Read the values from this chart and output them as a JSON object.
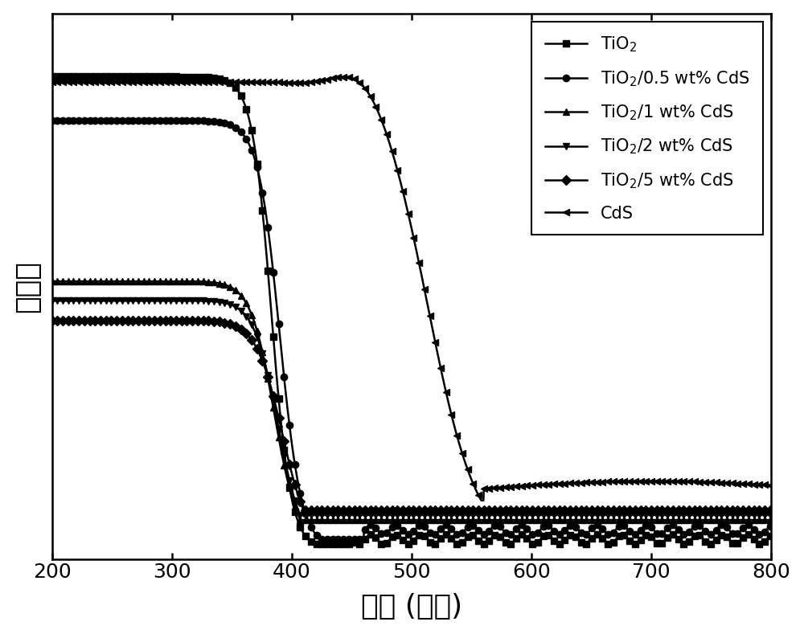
{
  "xlabel": "波长 (纳米)",
  "ylabel": "光吸收",
  "xmin": 200,
  "xmax": 800,
  "xticks": [
    200,
    300,
    400,
    500,
    600,
    700,
    800
  ],
  "legend_labels": [
    "TiO$_2$",
    "TiO$_2$/0.5 wt% CdS",
    "TiO$_2$/1 wt% CdS",
    "TiO$_2$/2 wt% CdS",
    "TiO$_2$/5 wt% CdS",
    "CdS"
  ],
  "markers": [
    "s",
    "o",
    "^",
    "v",
    "D",
    "<"
  ],
  "legend_fontsize": 15,
  "axis_label_fontsize": 26,
  "tick_fontsize": 18,
  "linewidth": 1.8,
  "markersize": 6,
  "background_color": "#ffffff"
}
